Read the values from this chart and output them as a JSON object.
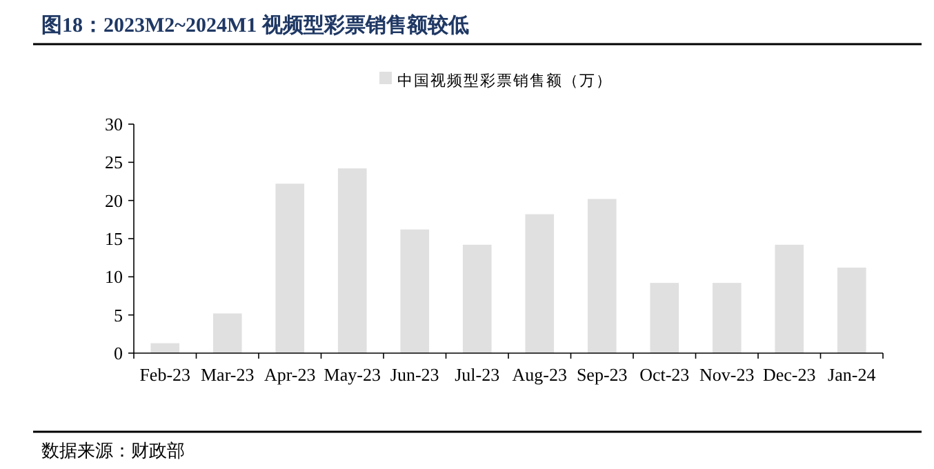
{
  "chart_data": {
    "type": "bar",
    "title": "图18：2023M2~2024M1 视频型彩票销售额较低",
    "categories": [
      "Feb-23",
      "Mar-23",
      "Apr-23",
      "May-23",
      "Jun-23",
      "Jul-23",
      "Aug-23",
      "Sep-23",
      "Oct-23",
      "Nov-23",
      "Dec-23",
      "Jan-24"
    ],
    "series": [
      {
        "name": "中国视频型彩票销售额（万）",
        "color": "#e0e0e0",
        "values": [
          1.3,
          5.2,
          22.2,
          24.2,
          16.2,
          14.2,
          18.2,
          20.2,
          9.2,
          9.2,
          14.2,
          11.2
        ]
      }
    ],
    "ylim": [
      0,
      30
    ],
    "yticks": [
      0,
      5,
      10,
      15,
      20,
      25,
      30
    ],
    "legend": "top",
    "grid": false,
    "annotations": [
      "数据来源：财政部"
    ]
  }
}
